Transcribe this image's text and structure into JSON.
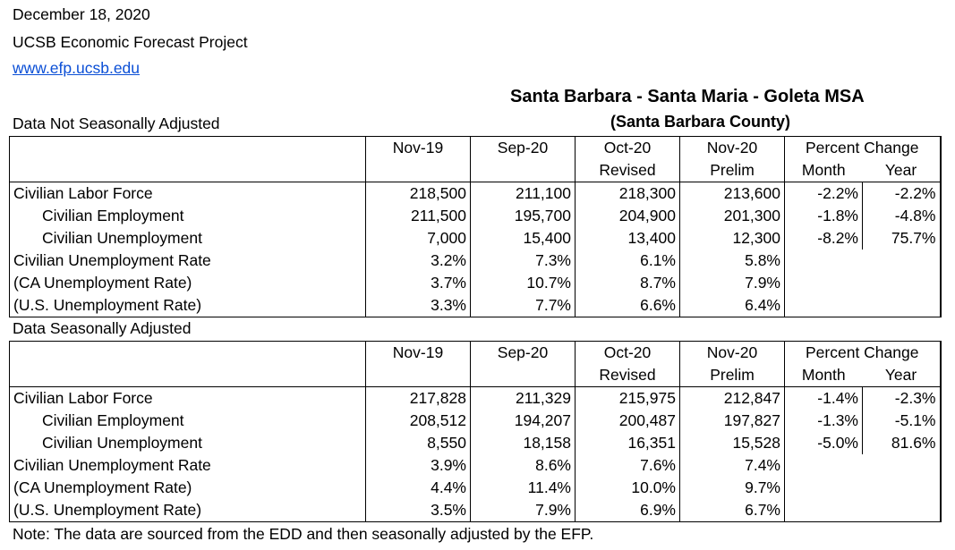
{
  "header": {
    "date": "December 18, 2020",
    "org": "UCSB Economic Forecast Project",
    "url": "www.efp.ucsb.edu"
  },
  "msa": {
    "title": "Santa Barbara - Santa Maria - Goleta MSA",
    "subtitle": "(Santa Barbara County)"
  },
  "columns": {
    "c1": "Nov-19",
    "c2": "Sep-20",
    "c3": "Oct-20",
    "c3_sub": "Revised",
    "c4": "Nov-20",
    "c4_sub": "Prelim",
    "pct": "Percent Change",
    "month": "Month",
    "year": "Year"
  },
  "nsa": {
    "heading": "Data Not Seasonally Adjusted",
    "rows": [
      {
        "label": "Civilian Labor Force",
        "v": [
          "218,500",
          "211,100",
          "218,300",
          "213,600"
        ],
        "month": "-2.2%",
        "year": "-2.2%"
      },
      {
        "label": "Civilian Employment",
        "v": [
          "211,500",
          "195,700",
          "204,900",
          "201,300"
        ],
        "month": "-1.8%",
        "year": "-4.8%"
      },
      {
        "label": "Civilian Unemployment",
        "v": [
          "7,000",
          "15,400",
          "13,400",
          "12,300"
        ],
        "month": "-8.2%",
        "year": "75.7%"
      },
      {
        "label": "Civilian Unemployment Rate",
        "v": [
          "3.2%",
          "7.3%",
          "6.1%",
          "5.8%"
        ],
        "month": "",
        "year": ""
      },
      {
        "label": "(CA Unemployment Rate)",
        "v": [
          "3.7%",
          "10.7%",
          "8.7%",
          "7.9%"
        ],
        "month": "",
        "year": ""
      },
      {
        "label": "(U.S. Unemployment Rate)",
        "v": [
          "3.3%",
          "7.7%",
          "6.6%",
          "6.4%"
        ],
        "month": "",
        "year": ""
      }
    ]
  },
  "sa": {
    "heading": "Data Seasonally Adjusted",
    "rows": [
      {
        "label": "Civilian Labor Force",
        "v": [
          "217,828",
          "211,329",
          "215,975",
          "212,847"
        ],
        "month": "-1.4%",
        "year": "-2.3%"
      },
      {
        "label": "Civilian Employment",
        "v": [
          "208,512",
          "194,207",
          "200,487",
          "197,827"
        ],
        "month": "-1.3%",
        "year": "-5.1%"
      },
      {
        "label": "Civilian Unemployment",
        "v": [
          "8,550",
          "18,158",
          "16,351",
          "15,528"
        ],
        "month": "-5.0%",
        "year": "81.6%"
      },
      {
        "label": "Civilian Unemployment Rate",
        "v": [
          "3.9%",
          "8.6%",
          "7.6%",
          "7.4%"
        ],
        "month": "",
        "year": ""
      },
      {
        "label": "(CA Unemployment Rate)",
        "v": [
          "4.4%",
          "11.4%",
          "10.0%",
          "9.7%"
        ],
        "month": "",
        "year": ""
      },
      {
        "label": "(U.S. Unemployment Rate)",
        "v": [
          "3.5%",
          "7.9%",
          "6.9%",
          "6.7%"
        ],
        "month": "",
        "year": ""
      }
    ]
  },
  "note": "Note: The data are sourced from the EDD and then seasonally adjusted by the EFP."
}
